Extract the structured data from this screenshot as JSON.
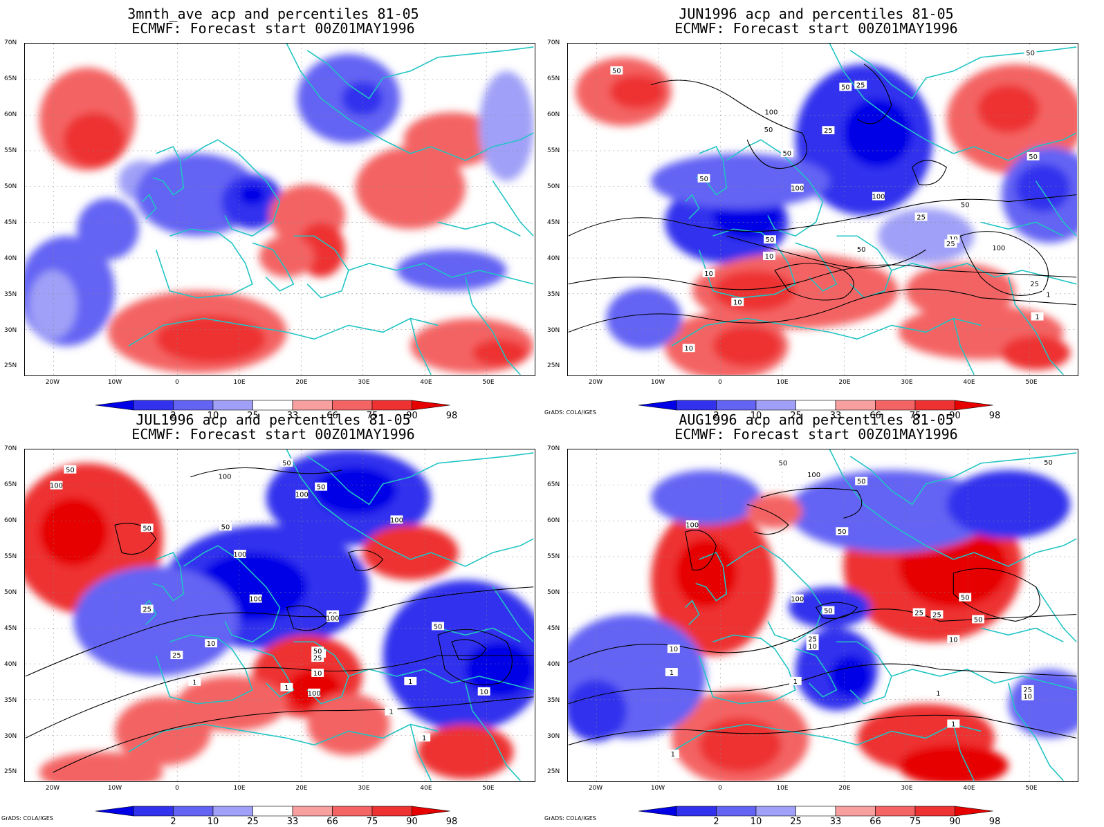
{
  "panels": [
    {
      "title1": "3mnth_ave acp and percentiles 81-05",
      "title2": "ECMWF: Forecast start 00Z01MAY1996",
      "credit": "",
      "contour_labels": []
    },
    {
      "title1": "JUN1996 acp and percentiles 81-05",
      "title2": "ECMWF: Forecast start 00Z01MAY1996",
      "credit": "GrADS: COLA/IGES",
      "contour_labels": [
        "50",
        "50",
        "50",
        "100",
        "50",
        "25",
        "50",
        "50",
        "50",
        "100",
        "100",
        "50",
        "25",
        "10",
        "50",
        "25",
        "10",
        "10",
        "10",
        "25",
        "50",
        "100",
        "1",
        "10",
        "1",
        "25"
      ]
    },
    {
      "title1": "JUL1996 acp and percentiles 81-05",
      "title2": "ECMWF: Forecast start 00Z01MAY1996",
      "credit": "GrADS: COLA/IGES",
      "contour_labels": [
        "50",
        "100",
        "50",
        "100",
        "50",
        "100",
        "100",
        "50",
        "50",
        "100",
        "100",
        "50",
        "25",
        "50",
        "25",
        "100",
        "10",
        "25",
        "50",
        "25",
        "1",
        "10",
        "1",
        "100",
        "1",
        "1",
        "10",
        "1"
      ]
    },
    {
      "title1": "AUG1996 acp and percentiles 81-05",
      "title2": "ECMWF: Forecast start 00Z01MAY1996",
      "credit": "GrADS: COLA/IGES",
      "contour_labels": [
        "50",
        "100",
        "50",
        "50",
        "100",
        "50",
        "50",
        "100",
        "50",
        "25",
        "50",
        "25",
        "10",
        "25",
        "10",
        "10",
        "1",
        "1",
        "1",
        "25",
        "10",
        "1",
        "1"
      ]
    }
  ],
  "axes": {
    "lat_labels": [
      "70N",
      "65N",
      "60N",
      "55N",
      "50N",
      "45N",
      "40N",
      "35N",
      "30N",
      "25N"
    ],
    "lon_labels": [
      "20W",
      "10W",
      "0",
      "10E",
      "20E",
      "30E",
      "40E",
      "50E"
    ]
  },
  "colorbar": {
    "labels": [
      "2",
      "10",
      "25",
      "33",
      "66",
      "75",
      "90",
      "98"
    ],
    "colors": [
      "#0000e6",
      "#3232ee",
      "#6464f4",
      "#a0a0f8",
      "#ffffff",
      "#f8a0a0",
      "#f46464",
      "#ee3232",
      "#e60000"
    ]
  }
}
